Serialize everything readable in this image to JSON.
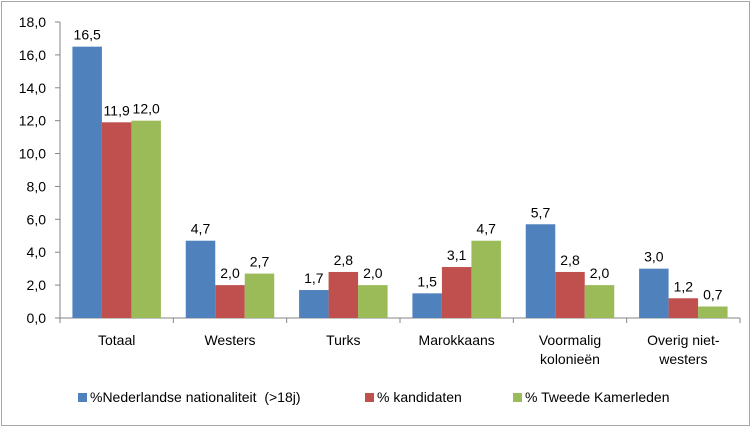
{
  "chart_data": {
    "type": "bar",
    "categories": [
      [
        "Totaal"
      ],
      [
        "Westers"
      ],
      [
        "Turks"
      ],
      [
        "Marokkaans"
      ],
      [
        "Voormalig",
        "kolonieën"
      ],
      [
        "Overig niet-",
        "westers"
      ]
    ],
    "series": [
      {
        "name": "%Nederlandse nationaliteit  (>18j)",
        "color": "#4f81bd",
        "values": [
          16.5,
          4.7,
          1.7,
          1.5,
          5.7,
          3.0
        ],
        "labels": [
          "16,5",
          "4,7",
          "1,7",
          "1,5",
          "5,7",
          "3,0"
        ]
      },
      {
        "name": "% kandidaten",
        "color": "#c0504d",
        "values": [
          11.9,
          2.0,
          2.8,
          3.1,
          2.8,
          1.2
        ],
        "labels": [
          "11,9",
          "2,0",
          "2,8",
          "3,1",
          "2,8",
          "1,2"
        ]
      },
      {
        "name": "% Tweede Kamerleden",
        "color": "#9bbb59",
        "values": [
          12.0,
          2.7,
          2.0,
          4.7,
          2.0,
          0.7
        ],
        "labels": [
          "12,0",
          "2,7",
          "2,0",
          "4,7",
          "2,0",
          "0,7"
        ]
      }
    ],
    "ylim": [
      0,
      18
    ],
    "yticks": [
      0,
      2,
      4,
      6,
      8,
      10,
      12,
      14,
      16,
      18
    ],
    "ytick_labels": [
      "0,0",
      "2,0",
      "4,0",
      "6,0",
      "8,0",
      "10,0",
      "12,0",
      "14,0",
      "16,0",
      "18,0"
    ],
    "grid": false,
    "legend_position": "bottom"
  }
}
